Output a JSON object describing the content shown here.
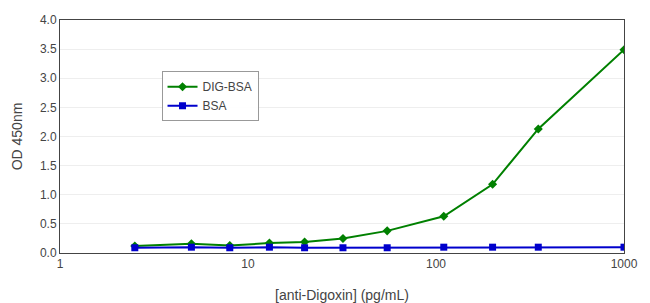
{
  "chart_data": {
    "type": "line",
    "xlabel": "[anti-Digoxin] (pg/mL)",
    "ylabel": "OD 450nm",
    "x": [
      2.5,
      5,
      8,
      13,
      20,
      32,
      55,
      110,
      200,
      350,
      1000
    ],
    "series": [
      {
        "name": "DIG-BSA",
        "color": "#008000",
        "marker": "diamond",
        "values": [
          0.12,
          0.16,
          0.13,
          0.17,
          0.19,
          0.25,
          0.38,
          0.63,
          1.18,
          2.13,
          3.49
        ]
      },
      {
        "name": "BSA",
        "color": "#0000CC",
        "marker": "square",
        "values": [
          0.09,
          0.1,
          0.09,
          0.1,
          0.09,
          0.09,
          0.09,
          0.1,
          0.1,
          0.1,
          0.1
        ]
      }
    ],
    "log": "x",
    "xlim": [
      1,
      1000
    ],
    "xticks": [
      1,
      10,
      100,
      1000
    ],
    "ylim": [
      0,
      4
    ],
    "yticks": [
      {
        "value": 0,
        "label": "0.0"
      },
      0.5,
      {
        "value": 1,
        "label": "1.0"
      },
      1.5,
      {
        "value": 2,
        "label": "2.0"
      },
      2.5,
      {
        "value": 3,
        "label": "3.0"
      },
      3.5,
      {
        "value": 4,
        "label": "4.0"
      }
    ],
    "grid": "y",
    "legend": "upper left"
  }
}
